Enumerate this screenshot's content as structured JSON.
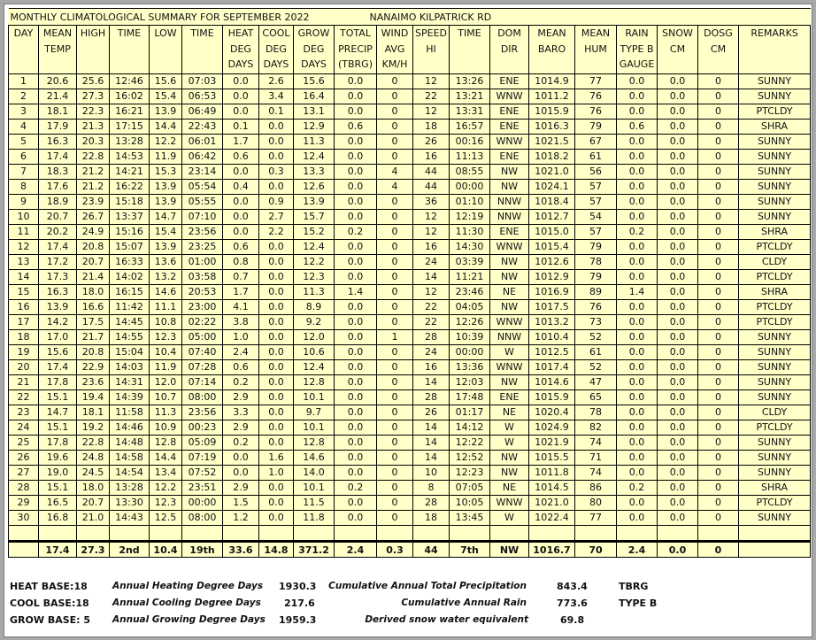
{
  "title": "MONTHLY CLIMATOLOGICAL SUMMARY FOR SEPTEMBER 2022",
  "station": "NANAIMO KILPATRICK RD",
  "headers": [
    "DAY",
    "MEAN TEMP",
    "HIGH",
    "TIME",
    "LOW",
    "TIME",
    "HEAT DEG DAYS",
    "COOL DEG DAYS",
    "GROW DEG DAYS",
    "TOTAL PRECIP (TBRG)",
    "WIND AVG KM/H",
    "SPEED HI",
    "TIME",
    "DOM DIR",
    "MEAN BARO",
    "MEAN HUM",
    "RAIN TYPE B GAUGE",
    "SNOW CM",
    "DOSG CM",
    "REMARKS"
  ],
  "rows": [
    [
      "1",
      "20.6",
      "25.6",
      "12:46",
      "15.6",
      "07:03",
      "0.0",
      "2.6",
      "15.6",
      "0.0",
      "0",
      "12",
      "13:26",
      "ENE",
      "1014.9",
      "77",
      "0.0",
      "0.0",
      "0",
      "SUNNY"
    ],
    [
      "2",
      "21.4",
      "27.3",
      "16:02",
      "15.4",
      "06:53",
      "0.0",
      "3.4",
      "16.4",
      "0.0",
      "0",
      "22",
      "13:21",
      "WNW",
      "1011.2",
      "76",
      "0.0",
      "0.0",
      "0",
      "SUNNY"
    ],
    [
      "3",
      "18.1",
      "22.3",
      "16:21",
      "13.9",
      "06:49",
      "0.0",
      "0.1",
      "13.1",
      "0.0",
      "0",
      "12",
      "13:31",
      "ENE",
      "1015.9",
      "76",
      "0.0",
      "0.0",
      "0",
      "PTCLDY"
    ],
    [
      "4",
      "17.9",
      "21.3",
      "17:15",
      "14.4",
      "22:43",
      "0.1",
      "0.0",
      "12.9",
      "0.6",
      "0",
      "18",
      "16:57",
      "ENE",
      "1016.3",
      "79",
      "0.6",
      "0.0",
      "0",
      "SHRA"
    ],
    [
      "5",
      "16.3",
      "20.3",
      "13:28",
      "12.2",
      "06:01",
      "1.7",
      "0.0",
      "11.3",
      "0.0",
      "0",
      "26",
      "00:16",
      "WNW",
      "1021.5",
      "67",
      "0.0",
      "0.0",
      "0",
      "SUNNY"
    ],
    [
      "6",
      "17.4",
      "22.8",
      "14:53",
      "11.9",
      "06:42",
      "0.6",
      "0.0",
      "12.4",
      "0.0",
      "0",
      "16",
      "11:13",
      "ENE",
      "1018.2",
      "61",
      "0.0",
      "0.0",
      "0",
      "SUNNY"
    ],
    [
      "7",
      "18.3",
      "21.2",
      "14:21",
      "15.3",
      "23:14",
      "0.0",
      "0.3",
      "13.3",
      "0.0",
      "4",
      "44",
      "08:55",
      "NW",
      "1021.0",
      "56",
      "0.0",
      "0.0",
      "0",
      "SUNNY"
    ],
    [
      "8",
      "17.6",
      "21.2",
      "16:22",
      "13.9",
      "05:54",
      "0.4",
      "0.0",
      "12.6",
      "0.0",
      "4",
      "44",
      "00:00",
      "NW",
      "1024.1",
      "57",
      "0.0",
      "0.0",
      "0",
      "SUNNY"
    ],
    [
      "9",
      "18.9",
      "23.9",
      "15:18",
      "13.9",
      "05:55",
      "0.0",
      "0.9",
      "13.9",
      "0.0",
      "0",
      "36",
      "01:10",
      "NNW",
      "1018.4",
      "57",
      "0.0",
      "0.0",
      "0",
      "SUNNY"
    ],
    [
      "10",
      "20.7",
      "26.7",
      "13:37",
      "14.7",
      "07:10",
      "0.0",
      "2.7",
      "15.7",
      "0.0",
      "0",
      "12",
      "12:19",
      "NNW",
      "1012.7",
      "54",
      "0.0",
      "0.0",
      "0",
      "SUNNY"
    ],
    [
      "11",
      "20.2",
      "24.9",
      "15:16",
      "15.4",
      "23:56",
      "0.0",
      "2.2",
      "15.2",
      "0.2",
      "0",
      "12",
      "11:30",
      "ENE",
      "1015.0",
      "57",
      "0.2",
      "0.0",
      "0",
      "SHRA"
    ],
    [
      "12",
      "17.4",
      "20.8",
      "15:07",
      "13.9",
      "23:25",
      "0.6",
      "0.0",
      "12.4",
      "0.0",
      "0",
      "16",
      "14:30",
      "WNW",
      "1015.4",
      "79",
      "0.0",
      "0.0",
      "0",
      "PTCLDY"
    ],
    [
      "13",
      "17.2",
      "20.7",
      "16:33",
      "13.6",
      "01:00",
      "0.8",
      "0.0",
      "12.2",
      "0.0",
      "0",
      "24",
      "03:39",
      "NW",
      "1012.6",
      "78",
      "0.0",
      "0.0",
      "0",
      "CLDY"
    ],
    [
      "14",
      "17.3",
      "21.4",
      "14:02",
      "13.2",
      "03:58",
      "0.7",
      "0.0",
      "12.3",
      "0.0",
      "0",
      "14",
      "11:21",
      "NW",
      "1012.9",
      "79",
      "0.0",
      "0.0",
      "0",
      "PTCLDY"
    ],
    [
      "15",
      "16.3",
      "18.0",
      "16:15",
      "14.6",
      "20:53",
      "1.7",
      "0.0",
      "11.3",
      "1.4",
      "0",
      "12",
      "23:46",
      "NE",
      "1016.9",
      "89",
      "1.4",
      "0.0",
      "0",
      "SHRA"
    ],
    [
      "16",
      "13.9",
      "16.6",
      "11:42",
      "11.1",
      "23:00",
      "4.1",
      "0.0",
      "8.9",
      "0.0",
      "0",
      "22",
      "04:05",
      "NW",
      "1017.5",
      "76",
      "0.0",
      "0.0",
      "0",
      "PTCLDY"
    ],
    [
      "17",
      "14.2",
      "17.5",
      "14:45",
      "10.8",
      "02:22",
      "3.8",
      "0.0",
      "9.2",
      "0.0",
      "0",
      "22",
      "12:26",
      "WNW",
      "1013.2",
      "73",
      "0.0",
      "0.0",
      "0",
      "PTCLDY"
    ],
    [
      "18",
      "17.0",
      "21.7",
      "14:55",
      "12.3",
      "05:00",
      "1.0",
      "0.0",
      "12.0",
      "0.0",
      "1",
      "28",
      "10:39",
      "NNW",
      "1010.4",
      "52",
      "0.0",
      "0.0",
      "0",
      "SUNNY"
    ],
    [
      "19",
      "15.6",
      "20.8",
      "15:04",
      "10.4",
      "07:40",
      "2.4",
      "0.0",
      "10.6",
      "0.0",
      "0",
      "24",
      "00:00",
      "W",
      "1012.5",
      "61",
      "0.0",
      "0.0",
      "0",
      "SUNNY"
    ],
    [
      "20",
      "17.4",
      "22.9",
      "14:03",
      "11.9",
      "07:28",
      "0.6",
      "0.0",
      "12.4",
      "0.0",
      "0",
      "16",
      "13:36",
      "WNW",
      "1017.4",
      "52",
      "0.0",
      "0.0",
      "0",
      "SUNNY"
    ],
    [
      "21",
      "17.8",
      "23.6",
      "14:31",
      "12.0",
      "07:14",
      "0.2",
      "0.0",
      "12.8",
      "0.0",
      "0",
      "14",
      "12:03",
      "NW",
      "1014.6",
      "47",
      "0.0",
      "0.0",
      "0",
      "SUNNY"
    ],
    [
      "22",
      "15.1",
      "19.4",
      "14:39",
      "10.7",
      "08:00",
      "2.9",
      "0.0",
      "10.1",
      "0.0",
      "0",
      "28",
      "17:48",
      "ENE",
      "1015.9",
      "65",
      "0.0",
      "0.0",
      "0",
      "SUNNY"
    ],
    [
      "23",
      "14.7",
      "18.1",
      "11:58",
      "11.3",
      "23:56",
      "3.3",
      "0.0",
      "9.7",
      "0.0",
      "0",
      "26",
      "01:17",
      "NE",
      "1020.4",
      "78",
      "0.0",
      "0.0",
      "0",
      "CLDY"
    ],
    [
      "24",
      "15.1",
      "19.2",
      "14:46",
      "10.9",
      "00:23",
      "2.9",
      "0.0",
      "10.1",
      "0.0",
      "0",
      "14",
      "14:12",
      "W",
      "1024.9",
      "82",
      "0.0",
      "0.0",
      "0",
      "PTCLDY"
    ],
    [
      "25",
      "17.8",
      "22.8",
      "14:48",
      "12.8",
      "05:09",
      "0.2",
      "0.0",
      "12.8",
      "0.0",
      "0",
      "14",
      "12:22",
      "W",
      "1021.9",
      "74",
      "0.0",
      "0.0",
      "0",
      "SUNNY"
    ],
    [
      "26",
      "19.6",
      "24.8",
      "14:58",
      "14.4",
      "07:19",
      "0.0",
      "1.6",
      "14.6",
      "0.0",
      "0",
      "14",
      "12:52",
      "NW",
      "1015.5",
      "71",
      "0.0",
      "0.0",
      "0",
      "SUNNY"
    ],
    [
      "27",
      "19.0",
      "24.5",
      "14:54",
      "13.4",
      "07:52",
      "0.0",
      "1.0",
      "14.0",
      "0.0",
      "0",
      "10",
      "12:23",
      "NW",
      "1011.8",
      "74",
      "0.0",
      "0.0",
      "0",
      "SUNNY"
    ],
    [
      "28",
      "15.1",
      "18.0",
      "13:28",
      "12.2",
      "23:51",
      "2.9",
      "0.0",
      "10.1",
      "0.2",
      "0",
      "8",
      "07:05",
      "NE",
      "1014.5",
      "86",
      "0.2",
      "0.0",
      "0",
      "SHRA"
    ],
    [
      "29",
      "16.5",
      "20.7",
      "13:30",
      "12.3",
      "00:00",
      "1.5",
      "0.0",
      "11.5",
      "0.0",
      "0",
      "28",
      "10:05",
      "WNW",
      "1021.0",
      "80",
      "0.0",
      "0.0",
      "0",
      "PTCLDY"
    ],
    [
      "30",
      "16.8",
      "21.0",
      "14:43",
      "12.5",
      "08:00",
      "1.2",
      "0.0",
      "11.8",
      "0.0",
      "0",
      "18",
      "13:45",
      "W",
      "1022.4",
      "77",
      "0.0",
      "0.0",
      "0",
      "SUNNY"
    ]
  ],
  "totals": [
    "",
    "17.4",
    "27.3",
    "2nd",
    "10.4",
    "19th",
    "33.6",
    "14.8",
    "371.2",
    "2.4",
    "0.3",
    "44",
    "7th",
    "NW",
    "1016.7",
    "70",
    "2.4",
    "0.0",
    "0",
    ""
  ],
  "footer": {
    "heat_base": "HEAT BASE:18",
    "cool_base": "COOL BASE:18",
    "grow_base": "GROW BASE: 5",
    "heat_label": "Annual Heating Degree Days",
    "cool_label": "Annual Cooling Degree Days",
    "grow_label": "Annual Growing Degree Days",
    "heat_value": "1930.3",
    "cool_value": "217.6",
    "grow_value": "1959.3",
    "precip_label": "Cumulative Annual Total Precipitation",
    "rain_label": "Cumulative Annual Rain",
    "snow_label": "Derived snow water equivalent",
    "precip_value": "843.4",
    "rain_value": "773.6",
    "snow_value": "69.8",
    "precip_gauge": "TBRG",
    "rain_gauge": "TYPE B"
  },
  "colors": {
    "table_bg": "#ffffc8",
    "border": "#000000",
    "frame": "#a8a8a8"
  }
}
